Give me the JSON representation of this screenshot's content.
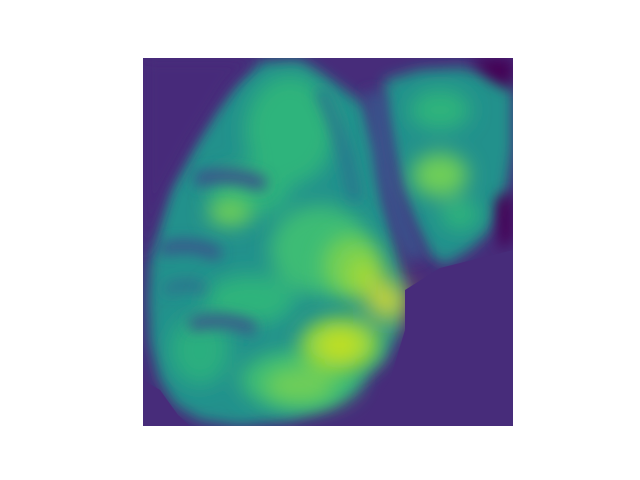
{
  "image": {
    "kind": "colormapped-intensity-image",
    "colormap": "viridis",
    "background_color": "#ffffff",
    "frame_fill_color": "#472c7a",
    "palette": {
      "dark_purple": "#472c7a",
      "deep_violet": "#440154",
      "teal": "#21918c",
      "mid_green": "#2fb47c",
      "bright_green": "#6ece58",
      "yellow_green": "#b5de2b",
      "yellow": "#fde725"
    },
    "axes_visible": false,
    "labels_visible": false
  }
}
